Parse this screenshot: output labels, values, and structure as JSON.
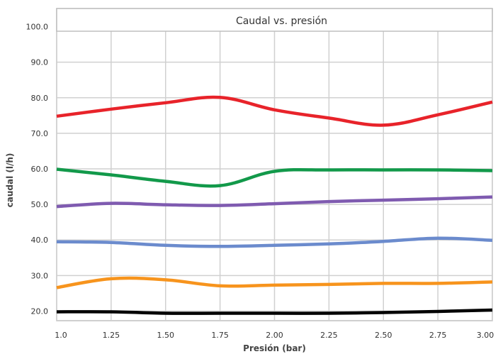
{
  "chart_data": {
    "type": "line",
    "title": "Caudal vs. presión",
    "xlabel": "Presión (bar)",
    "ylabel": "caudal (l/h)",
    "x": [
      1.0,
      1.25,
      1.5,
      1.75,
      2.0,
      2.25,
      2.5,
      2.75,
      3.0
    ],
    "x_tick_labels": [
      "1.0",
      "1.25",
      "1.50",
      "1.75",
      "2.00",
      "2.25",
      "2.50",
      "2.75",
      "3.00"
    ],
    "xlim": [
      1.0,
      3.0
    ],
    "y_ticks": [
      20,
      30,
      40,
      50,
      60,
      70,
      80,
      90,
      100
    ],
    "y_tick_labels": [
      "20.0",
      "30.0",
      "40.0",
      "50.0",
      "60.0",
      "70.0",
      "80.0",
      "90.0",
      "100.0"
    ],
    "ylim": [
      17.3,
      105.1
    ],
    "grid": true,
    "legend": "none",
    "series": [
      {
        "color": "#e8232a",
        "values": [
          74.8,
          76.8,
          78.6,
          80.1,
          76.6,
          74.3,
          72.3,
          75.2,
          78.8
        ]
      },
      {
        "color": "#12994a",
        "values": [
          59.9,
          58.3,
          56.5,
          55.3,
          59.3,
          59.7,
          59.7,
          59.7,
          59.5
        ]
      },
      {
        "color": "#7f5bb0",
        "values": [
          49.4,
          50.3,
          49.9,
          49.7,
          50.2,
          50.8,
          51.2,
          51.6,
          52.1
        ]
      },
      {
        "color": "#6b8bcd",
        "values": [
          39.5,
          39.3,
          38.5,
          38.2,
          38.5,
          38.9,
          39.6,
          40.5,
          39.9
        ]
      },
      {
        "color": "#f7941d",
        "values": [
          26.6,
          29.1,
          28.8,
          27.1,
          27.3,
          27.5,
          27.8,
          27.8,
          28.2
        ]
      },
      {
        "color": "#000000",
        "values": [
          19.8,
          19.8,
          19.4,
          19.4,
          19.4,
          19.4,
          19.6,
          19.9,
          20.3
        ]
      }
    ]
  }
}
